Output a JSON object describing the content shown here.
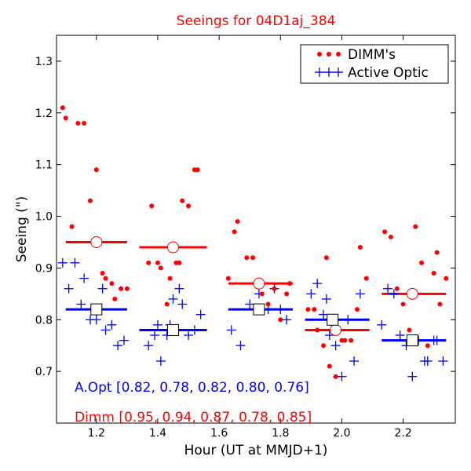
{
  "chart_data": {
    "type": "scatter",
    "title": "Seeings for 04D1aj_384",
    "xlabel": "Hour (UT at MMJD+1)",
    "ylabel": "Seeing (\")",
    "xlim": [
      1.07,
      2.37
    ],
    "ylim": [
      0.6,
      1.35
    ],
    "xticks": [
      "1.2",
      "1.4",
      "1.6",
      "1.8",
      "2.0",
      "2.2"
    ],
    "yticks": [
      "0.7",
      "0.8",
      "0.9",
      "1.0",
      "1.1",
      "1.2",
      "1.3"
    ],
    "legend": {
      "placement": "top-right",
      "dimm_label": "DIMM's",
      "ao_label": "Active Optic"
    },
    "colors": {
      "dimm": "#ff0000",
      "ao": "#0000ff",
      "title": "#ff0000"
    },
    "series": [
      {
        "name": "DIMM's",
        "marker": "dot",
        "points": [
          [
            1.09,
            1.21
          ],
          [
            1.1,
            1.19
          ],
          [
            1.12,
            0.98
          ],
          [
            1.14,
            1.18
          ],
          [
            1.16,
            1.18
          ],
          [
            1.18,
            1.03
          ],
          [
            1.2,
            1.09
          ],
          [
            1.22,
            0.89
          ],
          [
            1.23,
            0.88
          ],
          [
            1.25,
            0.87
          ],
          [
            1.26,
            0.84
          ],
          [
            1.28,
            0.86
          ],
          [
            1.3,
            0.86
          ],
          [
            1.37,
            0.91
          ],
          [
            1.38,
            1.02
          ],
          [
            1.4,
            0.91
          ],
          [
            1.41,
            0.9
          ],
          [
            1.43,
            0.83
          ],
          [
            1.44,
            0.88
          ],
          [
            1.45,
            0.94
          ],
          [
            1.46,
            0.91
          ],
          [
            1.47,
            0.91
          ],
          [
            1.48,
            1.03
          ],
          [
            1.5,
            1.02
          ],
          [
            1.52,
            1.09
          ],
          [
            1.53,
            1.09
          ],
          [
            1.63,
            0.88
          ],
          [
            1.65,
            0.97
          ],
          [
            1.66,
            0.99
          ],
          [
            1.69,
            0.92
          ],
          [
            1.71,
            0.92
          ],
          [
            1.74,
            0.85
          ],
          [
            1.76,
            0.83
          ],
          [
            1.78,
            0.86
          ],
          [
            1.8,
            0.8
          ],
          [
            1.82,
            0.85
          ],
          [
            1.83,
            0.87
          ],
          [
            1.89,
            0.82
          ],
          [
            1.91,
            0.82
          ],
          [
            1.92,
            0.78
          ],
          [
            1.94,
            0.75
          ],
          [
            1.95,
            0.92
          ],
          [
            1.96,
            0.71
          ],
          [
            1.98,
            0.69
          ],
          [
            2.0,
            0.76
          ],
          [
            2.01,
            0.76
          ],
          [
            2.03,
            0.76
          ],
          [
            2.05,
            0.82
          ],
          [
            2.06,
            0.94
          ],
          [
            2.08,
            0.88
          ],
          [
            2.14,
            0.97
          ],
          [
            2.16,
            0.96
          ],
          [
            2.18,
            0.86
          ],
          [
            2.2,
            0.83
          ],
          [
            2.22,
            0.78
          ],
          [
            2.24,
            0.98
          ],
          [
            2.26,
            0.91
          ],
          [
            2.28,
            0.75
          ],
          [
            2.3,
            0.89
          ],
          [
            2.31,
            0.93
          ],
          [
            2.32,
            0.83
          ],
          [
            2.34,
            0.88
          ]
        ]
      },
      {
        "name": "Active Optic",
        "marker": "plus",
        "points": [
          [
            1.09,
            0.91
          ],
          [
            1.11,
            0.86
          ],
          [
            1.13,
            0.91
          ],
          [
            1.15,
            0.83
          ],
          [
            1.16,
            0.88
          ],
          [
            1.18,
            0.8
          ],
          [
            1.2,
            0.8
          ],
          [
            1.22,
            0.86
          ],
          [
            1.23,
            0.78
          ],
          [
            1.25,
            0.79
          ],
          [
            1.27,
            0.75
          ],
          [
            1.29,
            0.76
          ],
          [
            1.37,
            0.75
          ],
          [
            1.39,
            0.77
          ],
          [
            1.4,
            0.79
          ],
          [
            1.41,
            0.72
          ],
          [
            1.43,
            0.77
          ],
          [
            1.44,
            0.79
          ],
          [
            1.45,
            0.84
          ],
          [
            1.47,
            0.86
          ],
          [
            1.48,
            0.83
          ],
          [
            1.5,
            0.77
          ],
          [
            1.52,
            0.78
          ],
          [
            1.54,
            0.81
          ],
          [
            1.64,
            0.78
          ],
          [
            1.67,
            0.75
          ],
          [
            1.7,
            0.83
          ],
          [
            1.73,
            0.85
          ],
          [
            1.76,
            0.82
          ],
          [
            1.78,
            0.86
          ],
          [
            1.8,
            0.82
          ],
          [
            1.82,
            0.8
          ],
          [
            1.9,
            0.85
          ],
          [
            1.92,
            0.87
          ],
          [
            1.94,
            0.81
          ],
          [
            1.95,
            0.84
          ],
          [
            1.96,
            0.77
          ],
          [
            1.98,
            0.75
          ],
          [
            2.0,
            0.69
          ],
          [
            2.02,
            0.8
          ],
          [
            2.04,
            0.72
          ],
          [
            2.06,
            0.85
          ],
          [
            2.13,
            0.79
          ],
          [
            2.15,
            0.86
          ],
          [
            2.17,
            0.85
          ],
          [
            2.19,
            0.77
          ],
          [
            2.21,
            0.75
          ],
          [
            2.23,
            0.69
          ],
          [
            2.25,
            0.76
          ],
          [
            2.27,
            0.72
          ],
          [
            2.28,
            0.72
          ],
          [
            2.3,
            0.76
          ],
          [
            2.31,
            0.76
          ],
          [
            2.33,
            0.72
          ]
        ]
      }
    ],
    "medians": {
      "dimm": [
        {
          "x0": 1.1,
          "x1": 1.3,
          "x": 1.2,
          "y": 0.95
        },
        {
          "x0": 1.34,
          "x1": 1.56,
          "x": 1.45,
          "y": 0.94
        },
        {
          "x0": 1.63,
          "x1": 1.84,
          "x": 1.73,
          "y": 0.87
        },
        {
          "x0": 1.88,
          "x1": 2.09,
          "x": 1.98,
          "y": 0.78
        },
        {
          "x0": 2.13,
          "x1": 2.34,
          "x": 2.23,
          "y": 0.85
        }
      ],
      "ao": [
        {
          "x0": 1.1,
          "x1": 1.3,
          "x": 1.2,
          "y": 0.82
        },
        {
          "x0": 1.34,
          "x1": 1.56,
          "x": 1.45,
          "y": 0.78
        },
        {
          "x0": 1.63,
          "x1": 1.84,
          "x": 1.73,
          "y": 0.82
        },
        {
          "x0": 1.88,
          "x1": 2.09,
          "x": 1.97,
          "y": 0.8
        },
        {
          "x0": 2.13,
          "x1": 2.34,
          "x": 2.23,
          "y": 0.76
        }
      ]
    },
    "annotations": {
      "ao_text": "A.Opt [0.82, 0.78, 0.82, 0.80, 0.76]",
      "dimm_text": "Dimm [0.95, 0.94, 0.87, 0.78, 0.85]"
    }
  }
}
